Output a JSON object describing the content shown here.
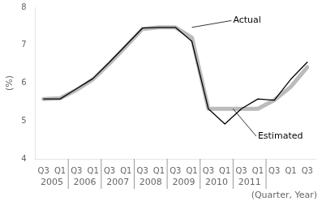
{
  "chart_data": {
    "type": "line",
    "title": "",
    "xlabel": "(Quarter, Year)",
    "ylabel": "(%)",
    "categories": [
      "Q3",
      "Q1",
      "Q3",
      "Q1",
      "Q3",
      "Q1",
      "Q3",
      "Q1",
      "Q3",
      "Q1",
      "Q3",
      "Q1",
      "Q3",
      "Q1",
      "Q3",
      "Q1",
      "Q3"
    ],
    "year_labels": [
      "2005",
      "2006",
      "2007",
      "2008",
      "2009",
      "2010",
      "2011"
    ],
    "series": [
      {
        "name": "Estimated",
        "color": "#bbbbbb",
        "values": [
          5.58,
          5.6,
          5.82,
          6.1,
          6.52,
          6.97,
          7.43,
          7.47,
          7.47,
          7.2,
          5.32,
          5.32,
          5.32,
          5.32,
          5.55,
          5.9,
          6.42
        ]
      },
      {
        "name": "Actual",
        "color": "#000000",
        "values": [
          5.58,
          5.58,
          5.85,
          6.12,
          6.55,
          7.0,
          7.45,
          7.47,
          7.47,
          7.1,
          5.32,
          4.92,
          5.32,
          5.58,
          5.55,
          6.1,
          6.55
        ]
      }
    ],
    "annotations": [
      {
        "text": "Actual",
        "x": 9,
        "y": 7.47,
        "text_x": 11.5,
        "text_y": 7.65
      },
      {
        "text": "Estimated",
        "x": 11.5,
        "y": 5.32,
        "text_x": 13.0,
        "text_y": 4.6
      }
    ],
    "ylim": [
      4,
      8
    ],
    "yticks": [
      4,
      5,
      6,
      7,
      8
    ],
    "grid": false
  }
}
